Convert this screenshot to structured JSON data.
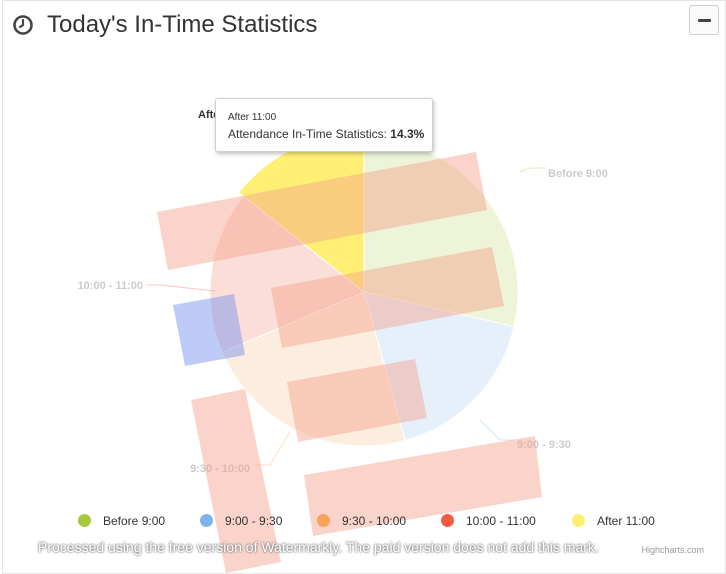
{
  "header": {
    "title": "Today's In-Time Statistics",
    "clock_icon": "clock-icon",
    "collapse_icon": "minus-icon"
  },
  "tooltip": {
    "header": "After 11:00",
    "series_label": "Attendance In-Time Statistics: ",
    "value_text": "14.3%"
  },
  "credits": "Highcharts.com",
  "watermark": "Processed using the free version of Watermarkly. The paid version does not add this mark.",
  "chart_data": {
    "type": "pie",
    "series": [
      {
        "name": "Attendance In-Time Statistics",
        "data": [
          {
            "name": "Before 9:00",
            "y": 28.6,
            "color": "#a5c83c"
          },
          {
            "name": "9:00 - 9:30",
            "y": 17.1,
            "color": "#7cb5ec"
          },
          {
            "name": "9:30 - 10:00",
            "y": 22.9,
            "color": "#f7a35c"
          },
          {
            "name": "10:00 - 11:00",
            "y": 17.1,
            "color": "#f15c40"
          },
          {
            "name": "After 11:00",
            "y": 14.3,
            "color": "#ffef6e"
          }
        ]
      }
    ],
    "hovered": "After 11:00",
    "legend_position": "bottom"
  }
}
